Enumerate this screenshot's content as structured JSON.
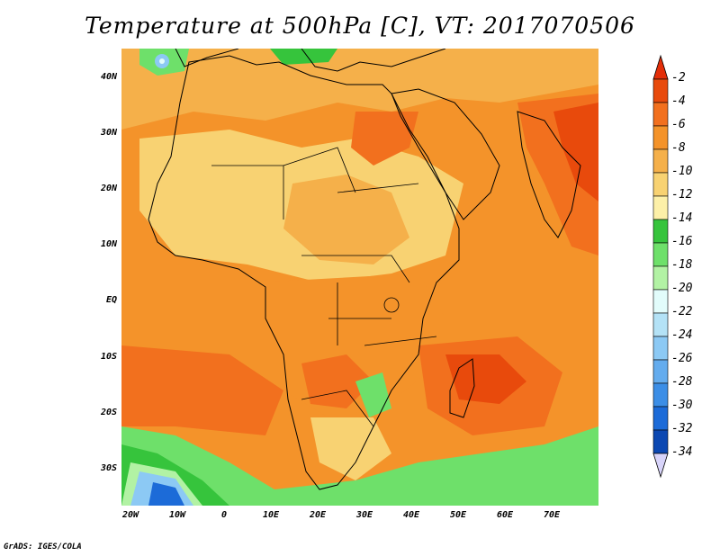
{
  "title": "Temperature at 500hPa [C], VT: 2017070506",
  "credit": "GrADS: IGES/COLA",
  "lat_ticks": [
    "40N",
    "30N",
    "20N",
    "10N",
    "EQ",
    "10S",
    "20S",
    "30S"
  ],
  "lon_ticks": [
    "20W",
    "10W",
    "0",
    "10E",
    "20E",
    "30E",
    "40E",
    "50E",
    "60E",
    "70E"
  ],
  "colorbar": {
    "labels": [
      "-2",
      "-4",
      "-6",
      "-8",
      "-10",
      "-12",
      "-14",
      "-16",
      "-18",
      "-20",
      "-22",
      "-24",
      "-26",
      "-28",
      "-30",
      "-32",
      "-34"
    ],
    "colors": [
      "#e84a0c",
      "#f2701e",
      "#f4932a",
      "#f5b04a",
      "#f8d272",
      "#fdf0a8",
      "#36c43c",
      "#6ee06a",
      "#b2f2a4",
      "#e2fcfb",
      "#b4e2f6",
      "#8cc9f4",
      "#64acee",
      "#3c8ee6",
      "#1c6bd8",
      "#0c48b2",
      "#080f6c"
    ],
    "top_arrow_color": "#e32e08",
    "bottom_arrow_color": "#d8d4fa"
  },
  "palette": {
    "background": "#f2b34d",
    "warm": "#f4932a",
    "hot": "#f2701e",
    "hottest": "#e84a0c",
    "mild": "#f8d272",
    "cool": "#fdf0a8",
    "green": "#6ee06a",
    "dark_green": "#36c43c",
    "light_green": "#b2f2a4",
    "blue": "#64acee",
    "dark_blue": "#1c6bd8",
    "coast": "#000000"
  }
}
